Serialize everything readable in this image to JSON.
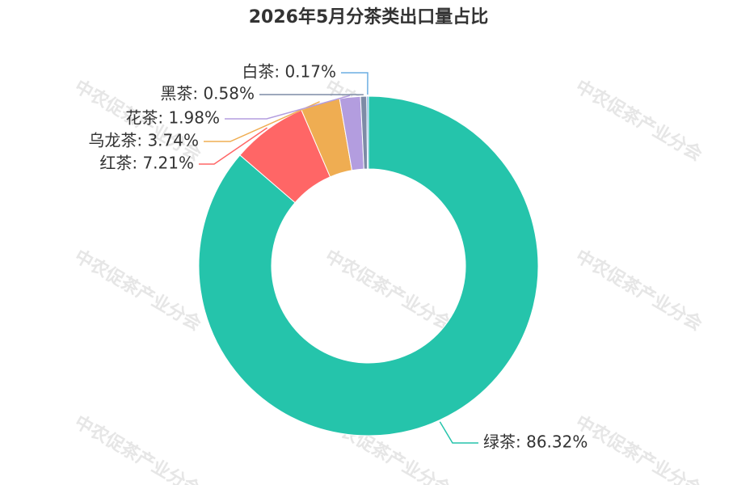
{
  "chart_data": {
    "type": "donut",
    "title": "2026年5月分茶类出口量占比",
    "watermark": "中农促茶产业分会",
    "values": [
      86.32,
      7.21,
      3.74,
      1.98,
      0.58,
      0.17
    ],
    "value_labels": [
      "绿茶: 86.32%",
      "红茶: 7.21%",
      "乌龙茶: 3.74%",
      "花茶: 1.98%",
      "黑茶: 0.58%",
      "白茶: 0.17%"
    ],
    "colors": [
      "#25c4ab",
      "#ff6666",
      "#efad52",
      "#b39ddf",
      "#7d8ba6",
      "#6caee2"
    ]
  }
}
